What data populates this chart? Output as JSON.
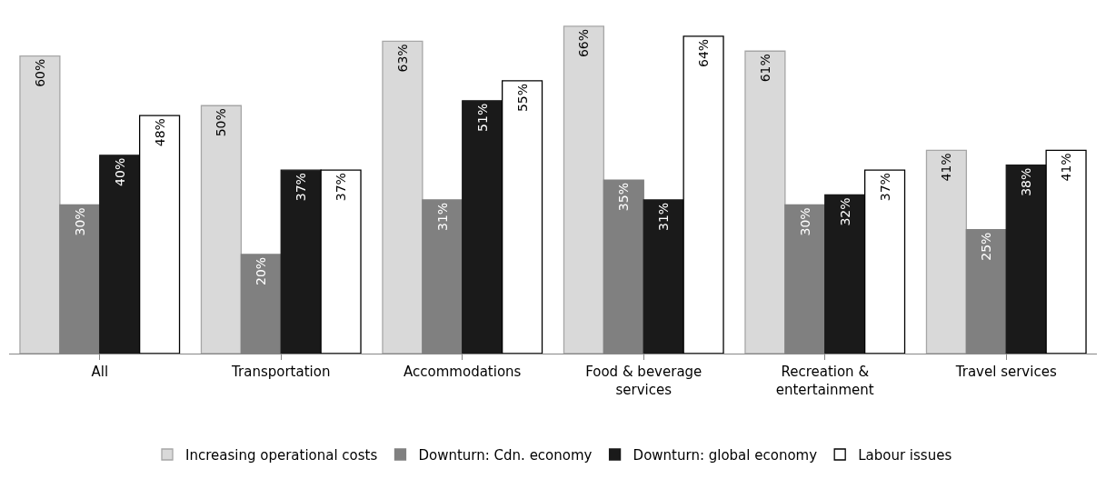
{
  "chart_data": {
    "type": "bar",
    "categories": [
      "All",
      "Transportation",
      "Accommodations",
      "Food & beverage services",
      "Recreation & entertainment",
      "Travel services"
    ],
    "series": [
      {
        "name": "Increasing operational costs",
        "color": "#d9d9d9",
        "values": [
          60,
          50,
          63,
          66,
          61,
          41
        ],
        "value_labels": [
          "60%",
          "50%",
          "63%",
          "66%",
          "61%",
          "41%"
        ]
      },
      {
        "name": "Downturn: Cdn. economy",
        "color": "#808080",
        "values": [
          30,
          20,
          31,
          35,
          30,
          25
        ],
        "value_labels": [
          "30%",
          "20%",
          "31%",
          "35%",
          "30%",
          "25%"
        ]
      },
      {
        "name": "Downturn: global economy",
        "color": "#1a1a1a",
        "values": [
          40,
          37,
          51,
          31,
          32,
          38
        ],
        "value_labels": [
          "40%",
          "37%",
          "51%",
          "31%",
          "32%",
          "38%"
        ]
      },
      {
        "name": "Labour issues",
        "color": "#ffffff",
        "values": [
          48,
          37,
          55,
          64,
          37,
          41
        ],
        "value_labels": [
          "48%",
          "37%",
          "55%",
          "64%",
          "37%",
          "41%"
        ]
      }
    ],
    "legend": "bottom"
  }
}
